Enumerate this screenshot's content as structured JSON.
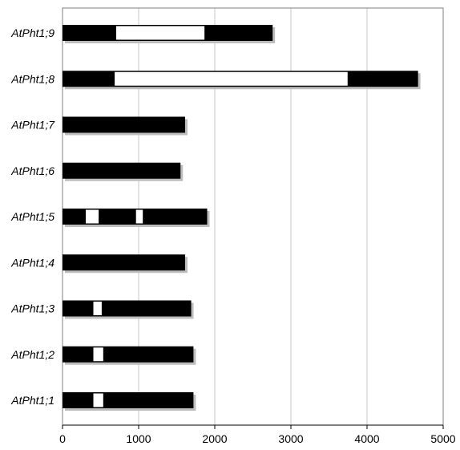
{
  "chart_data": {
    "type": "bar",
    "orientation": "horizontal",
    "description_free": true,
    "x_axis": {
      "min": 0,
      "max": 5000,
      "ticks": [
        0,
        1000,
        2000,
        3000,
        4000,
        5000
      ],
      "grid": true
    },
    "genes": [
      {
        "label": "AtPht1;9",
        "length": 2760,
        "introns": [
          [
            700,
            1870
          ]
        ]
      },
      {
        "label": "AtPht1;8",
        "length": 4670,
        "introns": [
          [
            680,
            3750
          ]
        ]
      },
      {
        "label": "AtPht1;7",
        "length": 1610,
        "introns": []
      },
      {
        "label": "AtPht1;6",
        "length": 1550,
        "introns": []
      },
      {
        "label": "AtPht1;5",
        "length": 1900,
        "introns": [
          [
            300,
            480
          ],
          [
            960,
            1060
          ]
        ]
      },
      {
        "label": "AtPht1;4",
        "length": 1610,
        "introns": []
      },
      {
        "label": "AtPht1;3",
        "length": 1690,
        "introns": [
          [
            400,
            520
          ]
        ]
      },
      {
        "label": "AtPht1;2",
        "length": 1720,
        "introns": [
          [
            400,
            540
          ]
        ]
      },
      {
        "label": "AtPht1;1",
        "length": 1720,
        "introns": [
          [
            400,
            540
          ]
        ]
      }
    ],
    "colors": {
      "exon": "#000000",
      "intron": "#ffffff",
      "shadow": "#bdbdbd",
      "grid": "#c8c8c8",
      "frame": "#808080"
    }
  }
}
